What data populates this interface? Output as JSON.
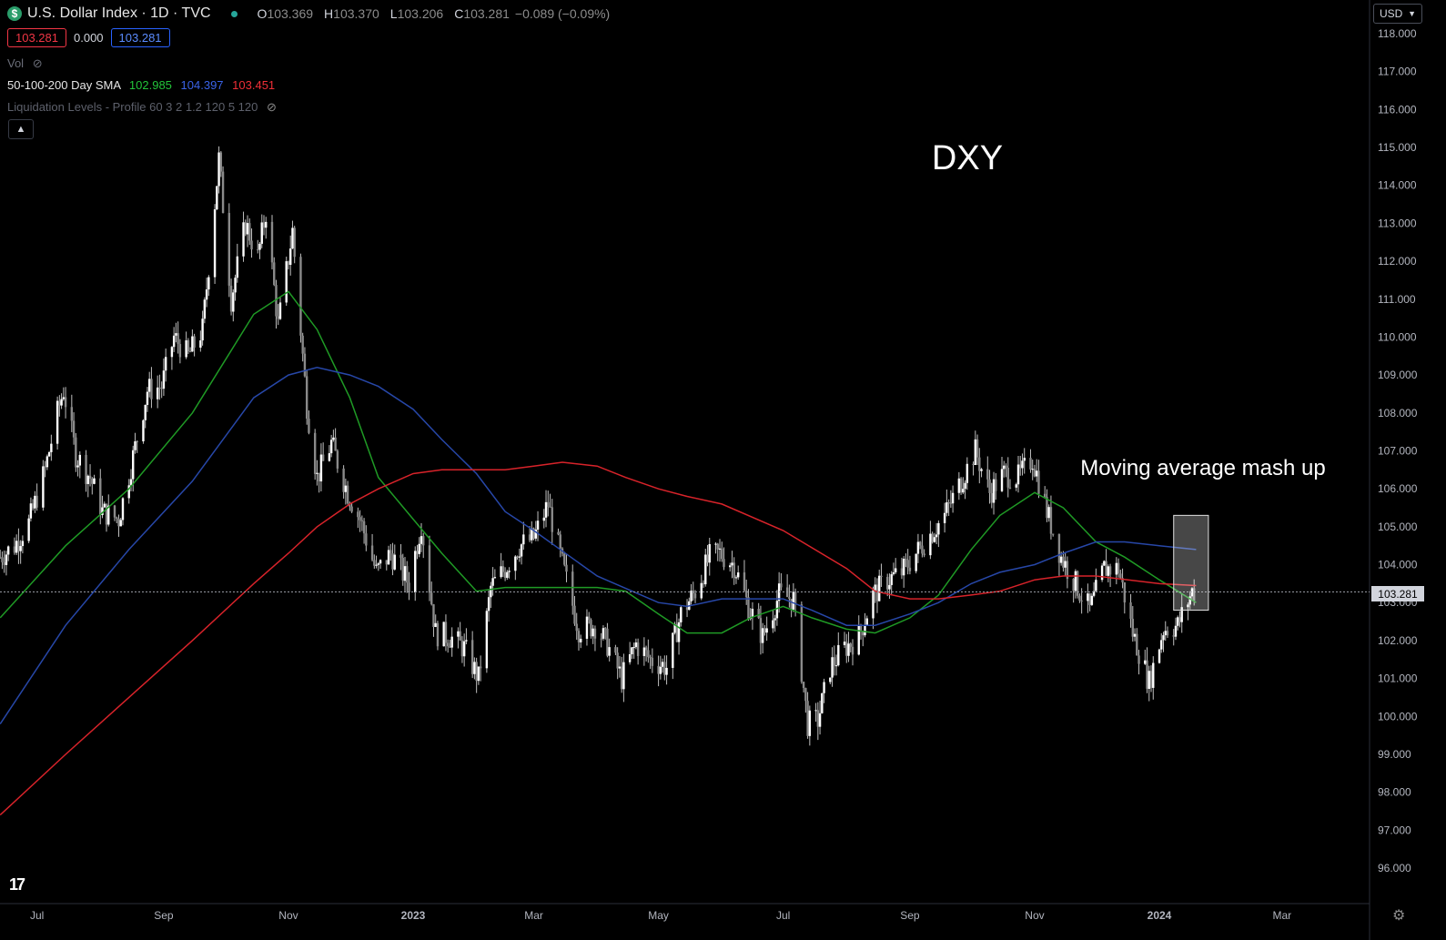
{
  "header": {
    "symbol_badge": "$",
    "title": "U.S. Dollar Index · 1D · TVC",
    "ohlc": [
      {
        "key": "O",
        "value": "103.369"
      },
      {
        "key": "H",
        "value": "103.370"
      },
      {
        "key": "L",
        "value": "103.206"
      },
      {
        "key": "C",
        "value": "103.281"
      }
    ],
    "change": "−0.089 (−0.09%)",
    "bid": "103.281",
    "spread": "0.000",
    "ask": "103.281"
  },
  "indicators": {
    "vol_label": "Vol",
    "sma_label": "50-100-200 Day SMA",
    "sma50": "102.985",
    "sma100": "104.397",
    "sma200": "103.451",
    "liq_label": "Liquidation Levels - Profile 60 3 2 1.2 120 5 120",
    "collapse_icon": "chevron-up-icon"
  },
  "currency_button": "USD",
  "colors": {
    "sma50": "#1f9a25",
    "sma100": "#2747a8",
    "sma200": "#d8232a",
    "candle": "#ffffff",
    "bid_border": "#f23645",
    "ask_border": "#2962ff"
  },
  "chart_data": {
    "type": "line",
    "title": "DXY",
    "annotation": "Moving average mash up",
    "last_price": "103.281",
    "ylim": [
      95.5,
      118.3
    ],
    "y_ticks": [
      "118.000",
      "117.000",
      "116.000",
      "115.000",
      "114.000",
      "113.000",
      "112.000",
      "111.000",
      "110.000",
      "109.000",
      "108.000",
      "107.000",
      "106.000",
      "105.000",
      "104.000",
      "103.000",
      "102.000",
      "101.000",
      "100.000",
      "99.000",
      "98.000",
      "97.000",
      "96.000"
    ],
    "x_ticks": [
      {
        "label": "Jul",
        "date": "2022-07-01",
        "bold": false
      },
      {
        "label": "Sep",
        "date": "2022-09-01",
        "bold": false
      },
      {
        "label": "Nov",
        "date": "2022-11-01",
        "bold": false
      },
      {
        "label": "2023",
        "date": "2023-01-01",
        "bold": true
      },
      {
        "label": "Mar",
        "date": "2023-03-01",
        "bold": false
      },
      {
        "label": "May",
        "date": "2023-05-01",
        "bold": false
      },
      {
        "label": "Jul",
        "date": "2023-07-01",
        "bold": false
      },
      {
        "label": "Sep",
        "date": "2023-09-01",
        "bold": false
      },
      {
        "label": "Nov",
        "date": "2023-11-01",
        "bold": false
      },
      {
        "label": "2024",
        "date": "2024-01-01",
        "bold": true
      },
      {
        "label": "Mar",
        "date": "2024-03-01",
        "bold": false
      }
    ],
    "price": {
      "name": "DXY",
      "points": [
        [
          "2022-06-13",
          104.2
        ],
        [
          "2022-06-20",
          104.5
        ],
        [
          "2022-06-27",
          105.1
        ],
        [
          "2022-07-05",
          106.5
        ],
        [
          "2022-07-11",
          108.0
        ],
        [
          "2022-07-14",
          108.6
        ],
        [
          "2022-07-20",
          106.9
        ],
        [
          "2022-07-27",
          106.3
        ],
        [
          "2022-08-02",
          105.4
        ],
        [
          "2022-08-10",
          105.2
        ],
        [
          "2022-08-16",
          106.6
        ],
        [
          "2022-08-24",
          108.6
        ],
        [
          "2022-08-31",
          108.7
        ],
        [
          "2022-09-06",
          110.0
        ],
        [
          "2022-09-13",
          109.5
        ],
        [
          "2022-09-20",
          110.2
        ],
        [
          "2022-09-27",
          114.1
        ],
        [
          "2022-09-28",
          114.7
        ],
        [
          "2022-10-04",
          111.0
        ],
        [
          "2022-10-11",
          113.0
        ],
        [
          "2022-10-17",
          112.1
        ],
        [
          "2022-10-21",
          113.3
        ],
        [
          "2022-10-27",
          110.3
        ],
        [
          "2022-11-03",
          112.8
        ],
        [
          "2022-11-10",
          108.2
        ],
        [
          "2022-11-15",
          106.3
        ],
        [
          "2022-11-22",
          107.2
        ],
        [
          "2022-11-30",
          105.9
        ],
        [
          "2022-12-06",
          105.2
        ],
        [
          "2022-12-14",
          103.8
        ],
        [
          "2022-12-21",
          104.3
        ],
        [
          "2022-12-30",
          103.5
        ],
        [
          "2023-01-05",
          105.1
        ],
        [
          "2023-01-12",
          102.2
        ],
        [
          "2023-01-19",
          102.1
        ],
        [
          "2023-01-26",
          101.8
        ],
        [
          "2023-02-02",
          101.0
        ],
        [
          "2023-02-08",
          103.4
        ],
        [
          "2023-02-15",
          103.9
        ],
        [
          "2023-02-22",
          104.5
        ],
        [
          "2023-03-01",
          104.7
        ],
        [
          "2023-03-08",
          105.6
        ],
        [
          "2023-03-15",
          104.0
        ],
        [
          "2023-03-23",
          102.3
        ],
        [
          "2023-03-31",
          102.4
        ],
        [
          "2023-04-06",
          101.9
        ],
        [
          "2023-04-13",
          101.0
        ],
        [
          "2023-04-20",
          101.9
        ],
        [
          "2023-04-27",
          101.5
        ],
        [
          "2023-05-05",
          101.3
        ],
        [
          "2023-05-12",
          102.7
        ],
        [
          "2023-05-19",
          103.3
        ],
        [
          "2023-05-26",
          104.2
        ],
        [
          "2023-05-31",
          104.3
        ],
        [
          "2023-06-07",
          104.0
        ],
        [
          "2023-06-14",
          102.9
        ],
        [
          "2023-06-21",
          102.1
        ],
        [
          "2023-06-29",
          103.2
        ],
        [
          "2023-07-06",
          103.1
        ],
        [
          "2023-07-13",
          99.8
        ],
        [
          "2023-07-18",
          99.9
        ],
        [
          "2023-07-24",
          101.3
        ],
        [
          "2023-07-31",
          101.8
        ],
        [
          "2023-08-07",
          102.1
        ],
        [
          "2023-08-14",
          103.2
        ],
        [
          "2023-08-21",
          103.6
        ],
        [
          "2023-08-28",
          103.8
        ],
        [
          "2023-09-04",
          104.3
        ],
        [
          "2023-09-11",
          104.8
        ],
        [
          "2023-09-18",
          105.3
        ],
        [
          "2023-09-26",
          106.2
        ],
        [
          "2023-10-03",
          107.0
        ],
        [
          "2023-10-10",
          105.9
        ],
        [
          "2023-10-17",
          106.4
        ],
        [
          "2023-10-24",
          106.3
        ],
        [
          "2023-10-31",
          106.8
        ],
        [
          "2023-11-07",
          105.4
        ],
        [
          "2023-11-14",
          104.2
        ],
        [
          "2023-11-21",
          103.5
        ],
        [
          "2023-11-28",
          102.8
        ],
        [
          "2023-12-05",
          103.9
        ],
        [
          "2023-12-12",
          103.9
        ],
        [
          "2023-12-19",
          102.2
        ],
        [
          "2023-12-27",
          100.9
        ],
        [
          "2024-01-03",
          102.3
        ],
        [
          "2024-01-10",
          102.4
        ],
        [
          "2024-01-17",
          103.3
        ],
        [
          "2024-01-19",
          103.281
        ]
      ]
    },
    "series": [
      {
        "name": "SMA 50",
        "color": "#1f9a25",
        "points": [
          [
            "2022-06-13",
            102.6
          ],
          [
            "2022-07-15",
            104.5
          ],
          [
            "2022-08-15",
            106.0
          ],
          [
            "2022-09-15",
            108.0
          ],
          [
            "2022-10-15",
            110.6
          ],
          [
            "2022-11-01",
            111.2
          ],
          [
            "2022-11-15",
            110.2
          ],
          [
            "2022-12-01",
            108.4
          ],
          [
            "2022-12-15",
            106.3
          ],
          [
            "2023-01-01",
            105.2
          ],
          [
            "2023-01-15",
            104.3
          ],
          [
            "2023-02-01",
            103.3
          ],
          [
            "2023-02-15",
            103.4
          ],
          [
            "2023-03-15",
            103.4
          ],
          [
            "2023-04-01",
            103.4
          ],
          [
            "2023-04-15",
            103.3
          ],
          [
            "2023-05-01",
            102.7
          ],
          [
            "2023-05-15",
            102.2
          ],
          [
            "2023-06-01",
            102.2
          ],
          [
            "2023-06-15",
            102.6
          ],
          [
            "2023-07-01",
            102.9
          ],
          [
            "2023-07-15",
            102.6
          ],
          [
            "2023-08-01",
            102.3
          ],
          [
            "2023-08-15",
            102.2
          ],
          [
            "2023-09-01",
            102.6
          ],
          [
            "2023-09-15",
            103.2
          ],
          [
            "2023-10-01",
            104.4
          ],
          [
            "2023-10-15",
            105.3
          ],
          [
            "2023-11-01",
            105.9
          ],
          [
            "2023-11-15",
            105.5
          ],
          [
            "2023-12-01",
            104.6
          ],
          [
            "2023-12-15",
            104.2
          ],
          [
            "2024-01-01",
            103.6
          ],
          [
            "2024-01-19",
            103.0
          ]
        ]
      },
      {
        "name": "SMA 100",
        "color": "#2747a8",
        "points": [
          [
            "2022-06-13",
            99.8
          ],
          [
            "2022-07-15",
            102.4
          ],
          [
            "2022-08-15",
            104.4
          ],
          [
            "2022-09-15",
            106.2
          ],
          [
            "2022-10-15",
            108.4
          ],
          [
            "2022-11-01",
            109.0
          ],
          [
            "2022-11-15",
            109.2
          ],
          [
            "2022-12-01",
            109.0
          ],
          [
            "2022-12-15",
            108.7
          ],
          [
            "2023-01-01",
            108.1
          ],
          [
            "2023-01-15",
            107.3
          ],
          [
            "2023-02-01",
            106.4
          ],
          [
            "2023-02-15",
            105.4
          ],
          [
            "2023-03-01",
            104.9
          ],
          [
            "2023-04-01",
            103.7
          ],
          [
            "2023-05-01",
            103.0
          ],
          [
            "2023-05-15",
            102.9
          ],
          [
            "2023-06-01",
            103.1
          ],
          [
            "2023-07-01",
            103.1
          ],
          [
            "2023-07-15",
            102.8
          ],
          [
            "2023-08-01",
            102.4
          ],
          [
            "2023-08-15",
            102.4
          ],
          [
            "2023-09-01",
            102.7
          ],
          [
            "2023-09-15",
            103.0
          ],
          [
            "2023-10-01",
            103.5
          ],
          [
            "2023-10-15",
            103.8
          ],
          [
            "2023-11-01",
            104.0
          ],
          [
            "2023-11-15",
            104.3
          ],
          [
            "2023-12-01",
            104.6
          ],
          [
            "2023-12-15",
            104.6
          ],
          [
            "2024-01-01",
            104.5
          ],
          [
            "2024-01-19",
            104.4
          ]
        ]
      },
      {
        "name": "SMA 200",
        "color": "#d8232a",
        "points": [
          [
            "2022-06-13",
            97.4
          ],
          [
            "2022-07-15",
            99.0
          ],
          [
            "2022-08-15",
            100.5
          ],
          [
            "2022-09-15",
            102.0
          ],
          [
            "2022-10-15",
            103.5
          ],
          [
            "2022-11-01",
            104.3
          ],
          [
            "2022-11-15",
            105.0
          ],
          [
            "2022-12-01",
            105.6
          ],
          [
            "2022-12-15",
            106.0
          ],
          [
            "2023-01-01",
            106.4
          ],
          [
            "2023-01-15",
            106.5
          ],
          [
            "2023-02-01",
            106.5
          ],
          [
            "2023-02-15",
            106.5
          ],
          [
            "2023-03-01",
            106.6
          ],
          [
            "2023-03-15",
            106.7
          ],
          [
            "2023-04-01",
            106.6
          ],
          [
            "2023-04-15",
            106.3
          ],
          [
            "2023-05-01",
            106.0
          ],
          [
            "2023-05-15",
            105.8
          ],
          [
            "2023-06-01",
            105.6
          ],
          [
            "2023-07-01",
            104.9
          ],
          [
            "2023-08-01",
            103.9
          ],
          [
            "2023-08-15",
            103.3
          ],
          [
            "2023-09-01",
            103.1
          ],
          [
            "2023-09-15",
            103.1
          ],
          [
            "2023-10-01",
            103.2
          ],
          [
            "2023-10-15",
            103.3
          ],
          [
            "2023-11-01",
            103.6
          ],
          [
            "2023-11-15",
            103.7
          ],
          [
            "2023-12-01",
            103.7
          ],
          [
            "2024-01-01",
            103.5
          ],
          [
            "2024-01-19",
            103.45
          ]
        ]
      }
    ],
    "highlight_box": {
      "x_from": "2024-01-08",
      "x_to": "2024-01-25",
      "y_from": 102.8,
      "y_to": 105.3
    }
  }
}
